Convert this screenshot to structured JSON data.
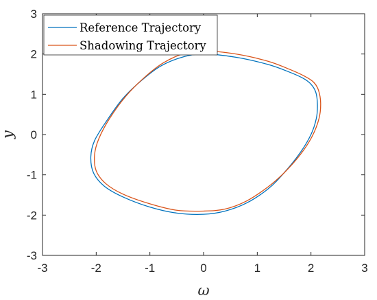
{
  "chart_data": {
    "type": "line",
    "title": "",
    "xlabel": "ω",
    "ylabel": "y",
    "xlim": [
      -3,
      3
    ],
    "ylim": [
      -3,
      3
    ],
    "xticks": [
      "-3",
      "-2",
      "-1",
      "0",
      "1",
      "2",
      "3"
    ],
    "yticks": [
      "-3",
      "-2",
      "-1",
      "0",
      "1",
      "2",
      "3"
    ],
    "grid": false,
    "legend_position": "top-left",
    "series": [
      {
        "name": "Reference Trajectory",
        "color": "#0072BD",
        "points": [
          [
            0.0,
            2.0
          ],
          [
            0.6,
            1.92
          ],
          [
            1.2,
            1.74
          ],
          [
            1.6,
            1.55
          ],
          [
            1.85,
            1.4
          ],
          [
            2.0,
            1.25
          ],
          [
            2.09,
            1.05
          ],
          [
            2.12,
            0.75
          ],
          [
            2.1,
            0.4
          ],
          [
            2.0,
            0.0
          ],
          [
            1.8,
            -0.45
          ],
          [
            1.5,
            -0.95
          ],
          [
            1.2,
            -1.35
          ],
          [
            0.8,
            -1.7
          ],
          [
            0.4,
            -1.9
          ],
          [
            0.0,
            -1.98
          ],
          [
            -0.5,
            -1.95
          ],
          [
            -1.0,
            -1.8
          ],
          [
            -1.5,
            -1.55
          ],
          [
            -1.85,
            -1.28
          ],
          [
            -2.05,
            -0.95
          ],
          [
            -2.1,
            -0.55
          ],
          [
            -2.03,
            -0.15
          ],
          [
            -1.8,
            0.35
          ],
          [
            -1.5,
            0.9
          ],
          [
            -1.15,
            1.35
          ],
          [
            -0.8,
            1.7
          ],
          [
            -0.4,
            1.92
          ],
          [
            0.0,
            2.0
          ]
        ]
      },
      {
        "name": "Shadowing Trajectory",
        "color": "#D95319",
        "points": [
          [
            0.0,
            2.08
          ],
          [
            0.6,
            2.0
          ],
          [
            1.2,
            1.82
          ],
          [
            1.6,
            1.62
          ],
          [
            1.88,
            1.45
          ],
          [
            2.05,
            1.3
          ],
          [
            2.14,
            1.1
          ],
          [
            2.18,
            0.78
          ],
          [
            2.15,
            0.4
          ],
          [
            2.02,
            -0.05
          ],
          [
            1.8,
            -0.5
          ],
          [
            1.5,
            -0.95
          ],
          [
            1.2,
            -1.3
          ],
          [
            0.8,
            -1.65
          ],
          [
            0.4,
            -1.85
          ],
          [
            0.0,
            -1.9
          ],
          [
            -0.5,
            -1.88
          ],
          [
            -1.0,
            -1.72
          ],
          [
            -1.5,
            -1.48
          ],
          [
            -1.82,
            -1.22
          ],
          [
            -2.0,
            -0.9
          ],
          [
            -2.03,
            -0.5
          ],
          [
            -1.95,
            -0.1
          ],
          [
            -1.75,
            0.4
          ],
          [
            -1.45,
            0.95
          ],
          [
            -1.1,
            1.42
          ],
          [
            -0.75,
            1.78
          ],
          [
            -0.35,
            2.02
          ],
          [
            0.0,
            2.08
          ]
        ]
      }
    ]
  }
}
